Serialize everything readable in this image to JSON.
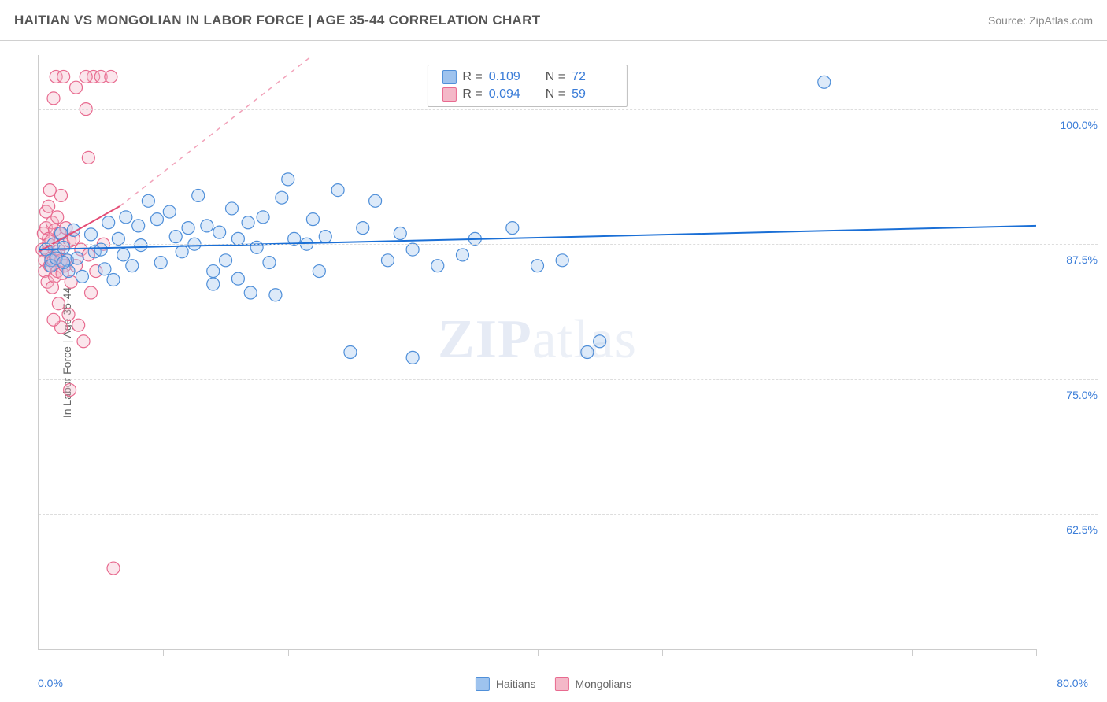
{
  "header": {
    "title": "HAITIAN VS MONGOLIAN IN LABOR FORCE | AGE 35-44 CORRELATION CHART",
    "source_prefix": "Source: ",
    "source_name": "ZipAtlas.com"
  },
  "chart": {
    "type": "scatter",
    "y_axis_label": "In Labor Force | Age 35-44",
    "background_color": "#ffffff",
    "grid_color": "#dddddd",
    "axis_color": "#cccccc",
    "xlim": [
      0,
      80
    ],
    "ylim": [
      50,
      105
    ],
    "x_tick_positions": [
      0,
      10,
      20,
      30,
      40,
      50,
      60,
      70,
      80
    ],
    "x_min_label": "0.0%",
    "x_max_label": "80.0%",
    "y_ticks": [
      {
        "value": 62.5,
        "label": "62.5%"
      },
      {
        "value": 75.0,
        "label": "75.0%"
      },
      {
        "value": 87.5,
        "label": "87.5%"
      },
      {
        "value": 100.0,
        "label": "100.0%"
      }
    ],
    "marker_radius": 8,
    "marker_stroke_width": 1.2,
    "fill_opacity": 0.35,
    "watermark": "ZIPatlas"
  },
  "series": {
    "haitians": {
      "label": "Haitians",
      "fill": "#9ec3ee",
      "stroke": "#4f8fd9",
      "trend": {
        "x1": 0,
        "y1": 87.0,
        "x2": 80,
        "y2": 89.2,
        "color": "#1a6fd6",
        "width": 2
      },
      "trend_dashed_extension": null,
      "points": [
        [
          0.6,
          87.0
        ],
        [
          1.0,
          86.0
        ],
        [
          1.2,
          87.5
        ],
        [
          1.0,
          85.5
        ],
        [
          1.4,
          86.2
        ],
        [
          1.8,
          88.5
        ],
        [
          2.0,
          87.2
        ],
        [
          2.3,
          86.0
        ],
        [
          2.4,
          85.0
        ],
        [
          2.0,
          85.8
        ],
        [
          2.8,
          88.8
        ],
        [
          3.1,
          86.2
        ],
        [
          3.5,
          84.5
        ],
        [
          4.2,
          88.4
        ],
        [
          4.5,
          86.8
        ],
        [
          5.0,
          87.0
        ],
        [
          5.3,
          85.2
        ],
        [
          5.6,
          89.5
        ],
        [
          6.0,
          84.2
        ],
        [
          6.4,
          88.0
        ],
        [
          6.8,
          86.5
        ],
        [
          7.0,
          90.0
        ],
        [
          7.5,
          85.5
        ],
        [
          8.0,
          89.2
        ],
        [
          8.2,
          87.4
        ],
        [
          8.8,
          91.5
        ],
        [
          9.5,
          89.8
        ],
        [
          9.8,
          85.8
        ],
        [
          10.5,
          90.5
        ],
        [
          11.0,
          88.2
        ],
        [
          11.5,
          86.8
        ],
        [
          12.0,
          89.0
        ],
        [
          12.5,
          87.5
        ],
        [
          12.8,
          92.0
        ],
        [
          13.5,
          89.2
        ],
        [
          14.0,
          85.0
        ],
        [
          14.5,
          88.6
        ],
        [
          15.0,
          86.0
        ],
        [
          15.5,
          90.8
        ],
        [
          16.0,
          88.0
        ],
        [
          16.8,
          89.5
        ],
        [
          17.0,
          83.0
        ],
        [
          17.5,
          87.2
        ],
        [
          18.0,
          90.0
        ],
        [
          18.5,
          85.8
        ],
        [
          16.0,
          84.3
        ],
        [
          19.5,
          91.8
        ],
        [
          20.0,
          93.5
        ],
        [
          20.5,
          88.0
        ],
        [
          14.0,
          83.8
        ],
        [
          21.5,
          87.5
        ],
        [
          22.0,
          89.8
        ],
        [
          22.5,
          85.0
        ],
        [
          23.0,
          88.2
        ],
        [
          24.0,
          92.5
        ],
        [
          25.0,
          77.5
        ],
        [
          26.0,
          89.0
        ],
        [
          27.0,
          91.5
        ],
        [
          28.0,
          86.0
        ],
        [
          29.0,
          88.5
        ],
        [
          30.0,
          87.0
        ],
        [
          19.0,
          82.8
        ],
        [
          32.0,
          85.5
        ],
        [
          30.0,
          77.0
        ],
        [
          34.0,
          86.5
        ],
        [
          35.0,
          88.0
        ],
        [
          38.0,
          89.0
        ],
        [
          40.0,
          85.5
        ],
        [
          42.0,
          86.0
        ],
        [
          44.0,
          77.5
        ],
        [
          45.0,
          78.5
        ],
        [
          63.0,
          102.5
        ]
      ]
    },
    "mongolians": {
      "label": "Mongolians",
      "fill": "#f4b8c8",
      "stroke": "#e86a8f",
      "trend": {
        "x1": 0,
        "y1": 86.8,
        "x2": 6.5,
        "y2": 91.0,
        "color": "#e44d76",
        "width": 2
      },
      "trend_dashed_extension": {
        "x1": 6.5,
        "y1": 91.0,
        "x2": 22,
        "y2": 105,
        "color": "#f2a3ba",
        "width": 1.5
      },
      "points": [
        [
          0.3,
          87.0
        ],
        [
          0.4,
          88.5
        ],
        [
          0.5,
          86.0
        ],
        [
          0.5,
          85.0
        ],
        [
          0.6,
          89.0
        ],
        [
          0.6,
          90.5
        ],
        [
          0.7,
          86.8
        ],
        [
          0.7,
          84.0
        ],
        [
          0.8,
          88.0
        ],
        [
          0.8,
          91.0
        ],
        [
          0.8,
          87.5
        ],
        [
          0.9,
          85.5
        ],
        [
          0.9,
          92.5
        ],
        [
          1.0,
          86.2
        ],
        [
          1.0,
          87.8
        ],
        [
          1.1,
          83.5
        ],
        [
          1.1,
          89.5
        ],
        [
          1.2,
          101.0
        ],
        [
          1.2,
          86.0
        ],
        [
          1.3,
          84.5
        ],
        [
          1.3,
          88.8
        ],
        [
          1.4,
          103.0
        ],
        [
          1.4,
          86.5
        ],
        [
          1.5,
          85.0
        ],
        [
          1.5,
          90.0
        ],
        [
          1.6,
          87.0
        ],
        [
          1.6,
          82.0
        ],
        [
          1.7,
          88.5
        ],
        [
          1.8,
          92.0
        ],
        [
          1.8,
          86.0
        ],
        [
          1.9,
          84.8
        ],
        [
          2.0,
          87.5
        ],
        [
          2.0,
          103.0
        ],
        [
          2.1,
          85.5
        ],
        [
          2.2,
          89.0
        ],
        [
          2.3,
          86.0
        ],
        [
          2.4,
          81.0
        ],
        [
          2.5,
          87.8
        ],
        [
          2.6,
          84.0
        ],
        [
          2.8,
          88.0
        ],
        [
          3.0,
          102.0
        ],
        [
          3.0,
          85.5
        ],
        [
          3.2,
          80.0
        ],
        [
          3.4,
          87.0
        ],
        [
          3.6,
          78.5
        ],
        [
          3.8,
          100.0
        ],
        [
          4.0,
          86.5
        ],
        [
          4.2,
          83.0
        ],
        [
          4.4,
          103.0
        ],
        [
          4.6,
          85.0
        ],
        [
          5.0,
          103.0
        ],
        [
          5.2,
          87.5
        ],
        [
          5.8,
          103.0
        ],
        [
          4.0,
          95.5
        ],
        [
          2.5,
          74.0
        ],
        [
          1.8,
          79.8
        ],
        [
          6.0,
          57.5
        ],
        [
          3.8,
          103.0
        ],
        [
          1.2,
          80.5
        ]
      ]
    }
  },
  "stats": [
    {
      "swatch_fill": "#9ec3ee",
      "swatch_stroke": "#4f8fd9",
      "r_label": "R =",
      "r_value": "0.109",
      "n_label": "N =",
      "n_value": "72"
    },
    {
      "swatch_fill": "#f4b8c8",
      "swatch_stroke": "#e86a8f",
      "r_label": "R =",
      "r_value": "0.094",
      "n_label": "N =",
      "n_value": "59"
    }
  ],
  "legend": [
    {
      "swatch_fill": "#9ec3ee",
      "swatch_stroke": "#4f8fd9",
      "label": "Haitians"
    },
    {
      "swatch_fill": "#f4b8c8",
      "swatch_stroke": "#e86a8f",
      "label": "Mongolians"
    }
  ]
}
